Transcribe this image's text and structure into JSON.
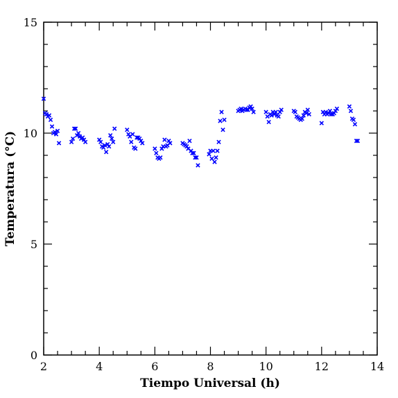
{
  "chart_data": {
    "type": "scatter",
    "title": "",
    "xlabel": "Tiempo Universal (h)",
    "ylabel": "Temperatura (°C)",
    "xlim": [
      2,
      14
    ],
    "ylim": [
      0,
      15
    ],
    "x_ticks": [
      "2",
      "4",
      "6",
      "8",
      "10",
      "12",
      "14"
    ],
    "y_ticks": [
      "0",
      "5",
      "10",
      "15"
    ],
    "grid": false,
    "marker": "x",
    "marker_color": "#0000ff",
    "frame_color": "#000000",
    "series": [
      {
        "points": [
          [
            2.0,
            11.55
          ],
          [
            2.05,
            10.9
          ],
          [
            2.1,
            10.85
          ],
          [
            2.15,
            10.75
          ],
          [
            2.2,
            10.8
          ],
          [
            2.25,
            10.6
          ],
          [
            2.3,
            10.3
          ],
          [
            2.35,
            10.0
          ],
          [
            2.4,
            10.05
          ],
          [
            2.45,
            9.95
          ],
          [
            2.5,
            10.1
          ],
          [
            2.55,
            9.55
          ],
          [
            3.0,
            9.6
          ],
          [
            3.05,
            9.75
          ],
          [
            3.1,
            10.2
          ],
          [
            3.15,
            10.2
          ],
          [
            3.2,
            9.9
          ],
          [
            3.25,
            10.0
          ],
          [
            3.3,
            9.85
          ],
          [
            3.35,
            9.75
          ],
          [
            3.4,
            9.8
          ],
          [
            3.45,
            9.7
          ],
          [
            3.5,
            9.6
          ],
          [
            4.0,
            9.7
          ],
          [
            4.05,
            9.6
          ],
          [
            4.1,
            9.4
          ],
          [
            4.15,
            9.35
          ],
          [
            4.2,
            9.45
          ],
          [
            4.25,
            9.15
          ],
          [
            4.3,
            9.5
          ],
          [
            4.35,
            9.4
          ],
          [
            4.4,
            9.9
          ],
          [
            4.45,
            9.75
          ],
          [
            4.5,
            9.6
          ],
          [
            4.55,
            10.2
          ],
          [
            5.0,
            10.15
          ],
          [
            5.05,
            9.95
          ],
          [
            5.1,
            9.85
          ],
          [
            5.15,
            9.6
          ],
          [
            5.2,
            9.95
          ],
          [
            5.25,
            9.35
          ],
          [
            5.3,
            9.3
          ],
          [
            5.35,
            9.8
          ],
          [
            5.4,
            9.8
          ],
          [
            5.45,
            9.75
          ],
          [
            5.5,
            9.65
          ],
          [
            5.55,
            9.55
          ],
          [
            6.0,
            9.3
          ],
          [
            6.05,
            9.1
          ],
          [
            6.1,
            8.9
          ],
          [
            6.15,
            8.85
          ],
          [
            6.2,
            8.9
          ],
          [
            6.25,
            9.3
          ],
          [
            6.3,
            9.4
          ],
          [
            6.35,
            9.7
          ],
          [
            6.4,
            9.4
          ],
          [
            6.45,
            9.45
          ],
          [
            6.5,
            9.65
          ],
          [
            6.55,
            9.55
          ],
          [
            7.0,
            9.55
          ],
          [
            7.05,
            9.5
          ],
          [
            7.1,
            9.45
          ],
          [
            7.15,
            9.4
          ],
          [
            7.2,
            9.3
          ],
          [
            7.25,
            9.65
          ],
          [
            7.3,
            9.2
          ],
          [
            7.35,
            9.1
          ],
          [
            7.4,
            9.1
          ],
          [
            7.45,
            8.9
          ],
          [
            7.5,
            8.9
          ],
          [
            7.55,
            8.55
          ],
          [
            7.95,
            9.05
          ],
          [
            8.0,
            9.2
          ],
          [
            8.05,
            8.85
          ],
          [
            8.1,
            9.2
          ],
          [
            8.15,
            8.7
          ],
          [
            8.2,
            8.9
          ],
          [
            8.25,
            9.2
          ],
          [
            8.3,
            9.6
          ],
          [
            8.35,
            10.55
          ],
          [
            8.4,
            10.95
          ],
          [
            8.45,
            10.15
          ],
          [
            8.5,
            10.6
          ],
          [
            9.0,
            11.0
          ],
          [
            9.05,
            11.05
          ],
          [
            9.1,
            11.1
          ],
          [
            9.15,
            11.0
          ],
          [
            9.2,
            11.05
          ],
          [
            9.25,
            11.1
          ],
          [
            9.3,
            11.05
          ],
          [
            9.35,
            11.05
          ],
          [
            9.4,
            11.15
          ],
          [
            9.45,
            11.2
          ],
          [
            9.5,
            11.1
          ],
          [
            9.55,
            10.95
          ],
          [
            10.0,
            10.95
          ],
          [
            10.05,
            10.75
          ],
          [
            10.1,
            10.5
          ],
          [
            10.15,
            10.85
          ],
          [
            10.2,
            10.8
          ],
          [
            10.25,
            10.95
          ],
          [
            10.3,
            10.85
          ],
          [
            10.35,
            10.95
          ],
          [
            10.4,
            10.8
          ],
          [
            10.45,
            10.75
          ],
          [
            10.5,
            10.95
          ],
          [
            10.55,
            11.05
          ],
          [
            11.0,
            11.0
          ],
          [
            11.05,
            10.95
          ],
          [
            11.1,
            10.75
          ],
          [
            11.15,
            10.7
          ],
          [
            11.2,
            10.65
          ],
          [
            11.25,
            10.6
          ],
          [
            11.3,
            10.65
          ],
          [
            11.35,
            10.8
          ],
          [
            11.4,
            10.95
          ],
          [
            11.45,
            10.9
          ],
          [
            11.5,
            11.05
          ],
          [
            11.55,
            10.85
          ],
          [
            12.0,
            10.45
          ],
          [
            12.05,
            10.95
          ],
          [
            12.1,
            10.85
          ],
          [
            12.15,
            10.95
          ],
          [
            12.2,
            10.85
          ],
          [
            12.25,
            10.9
          ],
          [
            12.3,
            11.0
          ],
          [
            12.35,
            10.85
          ],
          [
            12.4,
            10.85
          ],
          [
            12.45,
            10.9
          ],
          [
            12.5,
            11.0
          ],
          [
            12.55,
            11.1
          ],
          [
            13.0,
            11.2
          ],
          [
            13.05,
            11.0
          ],
          [
            13.1,
            10.65
          ],
          [
            13.15,
            10.6
          ],
          [
            13.2,
            10.4
          ],
          [
            13.25,
            9.65
          ],
          [
            13.3,
            9.65
          ]
        ]
      }
    ]
  }
}
